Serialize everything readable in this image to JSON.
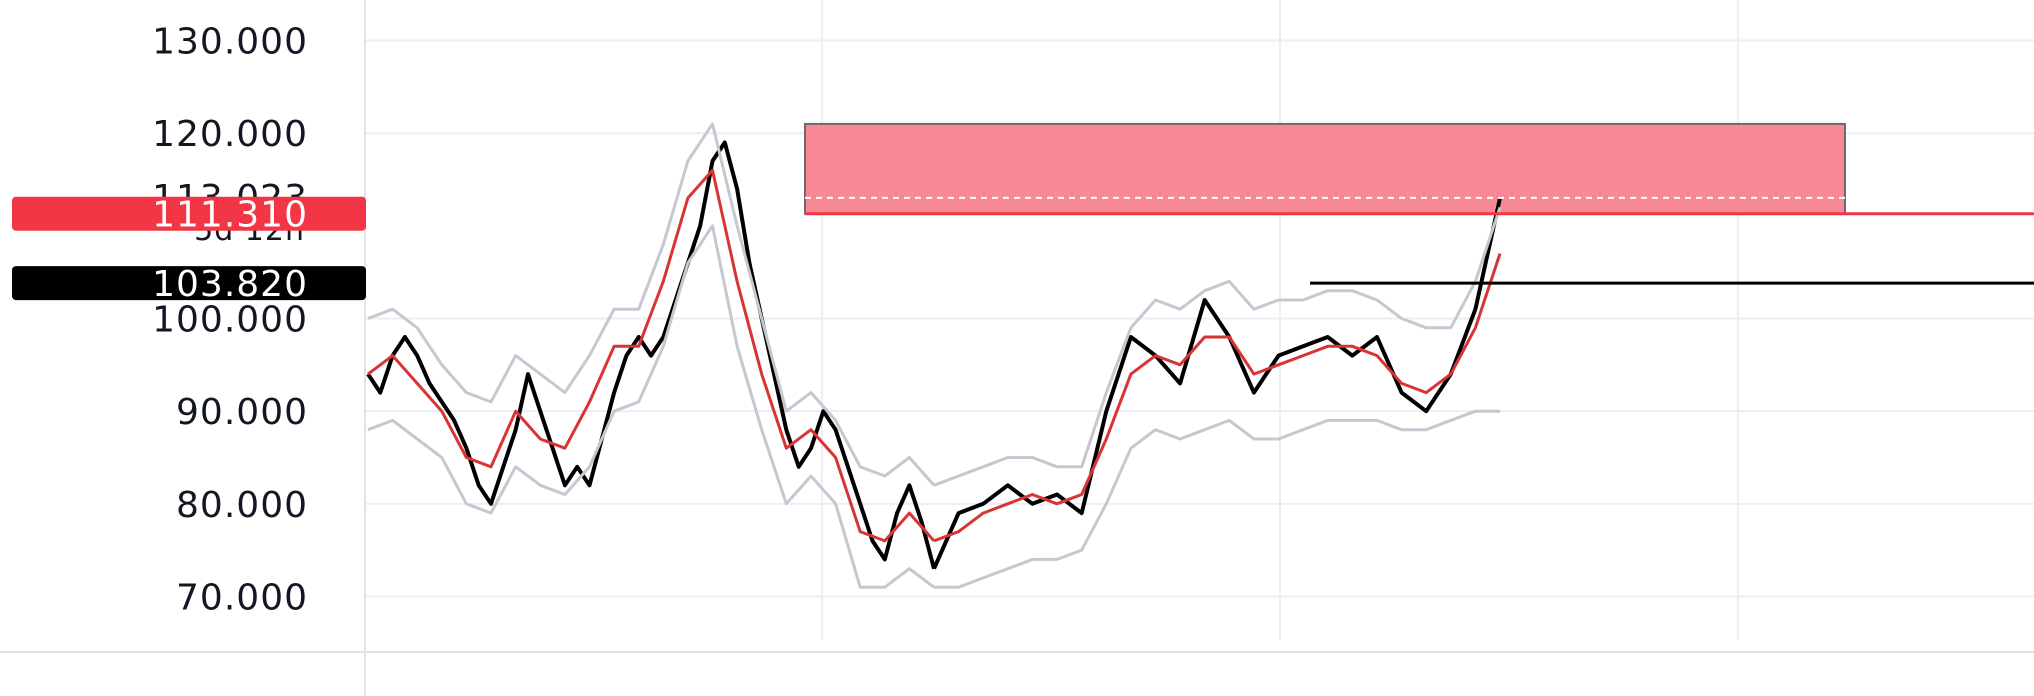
{
  "chart_data": {
    "type": "line",
    "title": "",
    "xlabel": "",
    "ylabel": "",
    "ylim": [
      68,
      132
    ],
    "y_ticks": [
      {
        "value": 130,
        "label": "130.000"
      },
      {
        "value": 120,
        "label": "120.000"
      },
      {
        "value": 100,
        "label": "100.000"
      },
      {
        "value": 90,
        "label": "90.000"
      },
      {
        "value": 80,
        "label": "80.000"
      },
      {
        "value": 70,
        "label": "70.000"
      }
    ],
    "current_price": {
      "value": 113.023,
      "label": "113.023",
      "countdown": "5d 12h"
    },
    "price_badges": [
      {
        "value": 111.31,
        "label": "111.310",
        "color": "#f23645"
      },
      {
        "value": 103.82,
        "label": "103.820",
        "color": "#000000"
      }
    ],
    "zone": {
      "top": 121,
      "bottom": 111.31,
      "color": "#f5838d"
    },
    "series": [
      {
        "name": "",
        "color": "#000000",
        "x": [
          0,
          5,
          10,
          15,
          20,
          25,
          30,
          35,
          40,
          45,
          50,
          55,
          60,
          65,
          70,
          75,
          80,
          85,
          90,
          95,
          100,
          105,
          110,
          115,
          120,
          125,
          130,
          135,
          140,
          145,
          150,
          155,
          160,
          165,
          170,
          175,
          180,
          185,
          190,
          195,
          200,
          205,
          210,
          215,
          220,
          225,
          230
        ],
        "values": [
          94,
          92,
          96,
          98,
          96,
          93,
          91,
          89,
          86,
          82,
          80,
          84,
          88,
          94,
          90,
          86,
          82,
          84,
          82,
          87,
          92,
          96,
          98,
          96,
          98,
          102,
          106,
          110,
          117,
          119,
          114,
          106,
          100,
          94,
          88,
          84,
          86,
          90,
          88,
          84,
          80,
          76,
          74,
          79,
          82,
          78,
          73
        ]
      },
      {
        "name": "",
        "color": "#d93434",
        "x": [
          0,
          10,
          20,
          30,
          40,
          50,
          60,
          70,
          80,
          90,
          100,
          110,
          120,
          130,
          140,
          150,
          160,
          170,
          180,
          190,
          200,
          210,
          220,
          230
        ],
        "values": [
          94,
          96,
          93,
          90,
          85,
          84,
          90,
          87,
          86,
          91,
          97,
          97,
          104,
          113,
          116,
          104,
          94,
          86,
          88,
          85,
          77,
          76,
          79,
          76
        ]
      },
      {
        "name": "",
        "color": "#c4c8d0",
        "x": [
          0,
          10,
          20,
          30,
          40,
          50,
          60,
          70,
          80,
          90,
          100,
          110,
          120,
          130,
          140,
          150,
          160,
          170,
          180,
          190,
          200,
          210,
          220,
          230
        ],
        "values": [
          100,
          101,
          99,
          95,
          92,
          91,
          96,
          94,
          92,
          96,
          101,
          101,
          108,
          117,
          121,
          110,
          100,
          90,
          92,
          89,
          84,
          83,
          85,
          82
        ]
      },
      {
        "name": "",
        "color": "#c4c8d0",
        "x": [
          0,
          10,
          20,
          30,
          40,
          50,
          60,
          70,
          80,
          90,
          100,
          110,
          120,
          130,
          140,
          150,
          160,
          170,
          180,
          190,
          200,
          210,
          220,
          230
        ],
        "values": [
          88,
          89,
          87,
          85,
          80,
          79,
          84,
          82,
          81,
          84,
          90,
          91,
          97,
          106,
          110,
          97,
          88,
          80,
          83,
          80,
          71,
          71,
          73,
          71
        ]
      },
      {
        "name": "",
        "color": "#000000",
        "x": [
          230,
          240,
          250,
          260,
          270,
          280,
          290,
          300,
          310,
          320,
          330,
          340,
          350,
          360,
          370,
          380,
          390,
          400,
          410,
          420,
          430,
          440,
          450,
          460
        ],
        "values": [
          73,
          79,
          80,
          82,
          80,
          81,
          79,
          90,
          98,
          96,
          93,
          102,
          98,
          92,
          96,
          97,
          98,
          96,
          98,
          92,
          90,
          94,
          101,
          113
        ]
      },
      {
        "name": "",
        "color": "#d93434",
        "x": [
          230,
          240,
          250,
          260,
          270,
          280,
          290,
          300,
          310,
          320,
          330,
          340,
          350,
          360,
          370,
          380,
          390,
          400,
          410,
          420,
          430,
          440,
          450,
          460
        ],
        "values": [
          76,
          77,
          79,
          80,
          81,
          80,
          81,
          87,
          94,
          96,
          95,
          98,
          98,
          94,
          95,
          96,
          97,
          97,
          96,
          93,
          92,
          94,
          99,
          107
        ]
      },
      {
        "name": "",
        "color": "#c4c8d0",
        "x": [
          230,
          240,
          250,
          260,
          270,
          280,
          290,
          300,
          310,
          320,
          330,
          340,
          350,
          360,
          370,
          380,
          390,
          400,
          410,
          420,
          430,
          440,
          450,
          460
        ],
        "values": [
          82,
          83,
          84,
          85,
          85,
          84,
          84,
          92,
          99,
          102,
          101,
          103,
          104,
          101,
          102,
          102,
          103,
          103,
          102,
          100,
          99,
          99,
          104,
          112
        ]
      },
      {
        "name": "",
        "color": "#c4c8d0",
        "x": [
          230,
          240,
          250,
          260,
          270,
          280,
          290,
          300,
          310,
          320,
          330,
          340,
          350,
          360,
          370,
          380,
          390,
          400,
          410,
          420,
          430,
          440,
          450,
          460
        ],
        "values": [
          71,
          71,
          72,
          73,
          74,
          74,
          75,
          80,
          86,
          88,
          87,
          88,
          89,
          87,
          87,
          88,
          89,
          89,
          89,
          88,
          88,
          89,
          90,
          90
        ]
      }
    ],
    "legend": "none",
    "grid": true
  }
}
